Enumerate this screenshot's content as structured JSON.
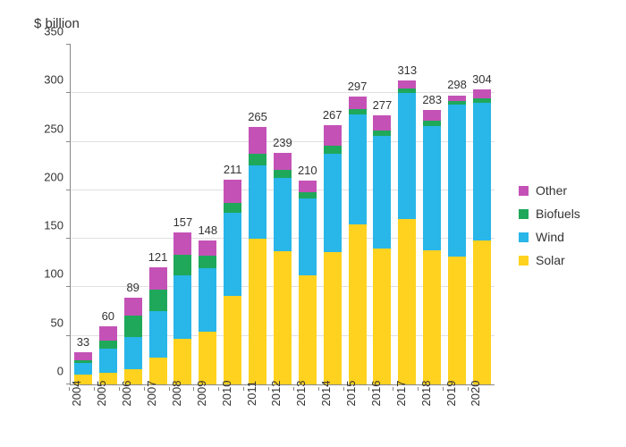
{
  "title": "$ billion",
  "chart": {
    "type": "stacked-bar",
    "ylim": [
      0,
      350
    ],
    "ytick_step": 50,
    "grid_color": "#e0e0e0",
    "axis_color": "#888888",
    "background_color": "#ffffff",
    "total_label_fontsize": 13,
    "tick_label_fontsize": 13,
    "series_order": [
      "Solar",
      "Wind",
      "Biofuels",
      "Other"
    ],
    "colors": {
      "Solar": "#ffd21f",
      "Wind": "#29b6e8",
      "Biofuels": "#1fa85a",
      "Other": "#c452b6"
    },
    "legend_order": [
      "Other",
      "Biofuels",
      "Wind",
      "Solar"
    ],
    "categories": [
      "2004",
      "2005",
      "2006",
      "2007",
      "2008",
      "2009",
      "2010",
      "2011",
      "2012",
      "2013",
      "2014",
      "2015",
      "2016",
      "2017",
      "2018",
      "2019",
      "2020"
    ],
    "totals": [
      33,
      60,
      89,
      121,
      157,
      148,
      211,
      265,
      239,
      210,
      267,
      297,
      277,
      313,
      283,
      298,
      304
    ],
    "data": {
      "Solar": [
        10,
        12,
        16,
        28,
        47,
        54,
        91,
        150,
        137,
        112,
        136,
        165,
        140,
        170,
        138,
        132,
        148
      ],
      "Wind": [
        12,
        25,
        33,
        48,
        65,
        66,
        86,
        76,
        76,
        80,
        102,
        113,
        116,
        130,
        128,
        156,
        142
      ],
      "Biofuels": [
        3,
        8,
        22,
        22,
        22,
        13,
        10,
        12,
        8,
        6,
        8,
        6,
        6,
        5,
        6,
        4,
        5
      ],
      "Other": [
        8,
        15,
        18,
        23,
        23,
        15,
        24,
        27,
        18,
        12,
        21,
        13,
        15,
        8,
        11,
        6,
        9
      ]
    }
  }
}
